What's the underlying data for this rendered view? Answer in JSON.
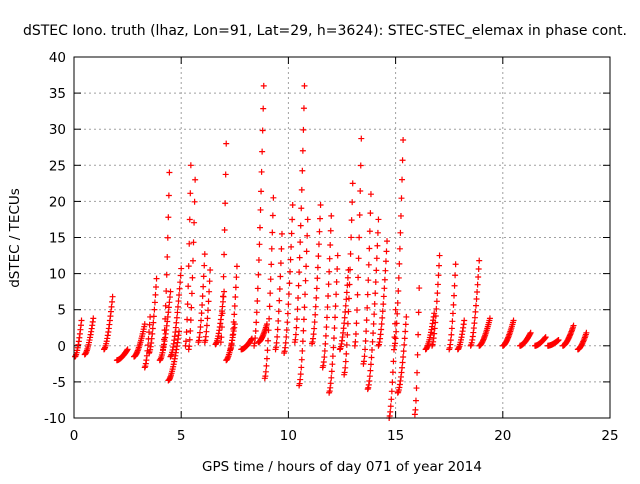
{
  "chart_data": {
    "type": "scatter",
    "title": "dSTEC Iono. truth (lhaz, Lon=91, Lat=29, h=3624): STEC-STEC_elemax in phase cont.",
    "xlabel": "GPS time / hours of day 071 of year 2014",
    "ylabel": "dSTEC  / TECUs",
    "xlim": [
      0,
      25
    ],
    "ylim": [
      -10,
      40
    ],
    "xticks": [
      0,
      5,
      10,
      15,
      20,
      25
    ],
    "yticks": [
      -10,
      -5,
      0,
      5,
      10,
      15,
      20,
      25,
      30,
      35,
      40
    ],
    "grid": true,
    "marker": "+",
    "marker_color": "#ff0000",
    "arcs": [
      {
        "t0": 0.05,
        "t1": 0.35,
        "v0": -1.5,
        "v1": 3.5
      },
      {
        "t0": 0.5,
        "t1": 0.9,
        "v0": -1.2,
        "v1": 3.8
      },
      {
        "t0": 1.4,
        "t1": 1.8,
        "v0": -0.5,
        "v1": 6.8
      },
      {
        "t0": 2.0,
        "t1": 2.5,
        "v0": -2.0,
        "v1": -0.5
      },
      {
        "t0": 2.8,
        "t1": 3.3,
        "v0": -1.5,
        "v1": 3.0
      },
      {
        "t0": 3.3,
        "t1": 3.55,
        "v0": -3.0,
        "v1": 4.0
      },
      {
        "t0": 3.5,
        "t1": 3.85,
        "v0": -1.0,
        "v1": 9.3
      },
      {
        "t0": 4.0,
        "t1": 4.5,
        "v0": -2.0,
        "v1": 7.5
      },
      {
        "t0": 4.15,
        "t1": 4.45,
        "v0": -0.5,
        "v1": 24.0
      },
      {
        "t0": 4.4,
        "t1": 4.9,
        "v0": -4.8,
        "v1": 2.0
      },
      {
        "t0": 4.5,
        "t1": 5.0,
        "v0": -1.5,
        "v1": 10.7
      },
      {
        "t0": 5.2,
        "t1": 5.45,
        "v0": 0.0,
        "v1": 25.0
      },
      {
        "t0": 5.35,
        "t1": 5.65,
        "v0": -0.5,
        "v1": 23.0
      },
      {
        "t0": 5.8,
        "t1": 6.1,
        "v0": 0.5,
        "v1": 12.7
      },
      {
        "t0": 6.1,
        "t1": 6.35,
        "v0": 0.5,
        "v1": 10.5
      },
      {
        "t0": 6.6,
        "t1": 7.0,
        "v0": 0.2,
        "v1": 7.5
      },
      {
        "t0": 6.85,
        "t1": 7.1,
        "v0": 0.5,
        "v1": 28.0
      },
      {
        "t0": 7.1,
        "t1": 7.5,
        "v0": -2.0,
        "v1": 3.0
      },
      {
        "t0": 7.3,
        "t1": 7.6,
        "v0": -0.5,
        "v1": 11.0
      },
      {
        "t0": 7.8,
        "t1": 8.3,
        "v0": -0.5,
        "v1": 1.0
      },
      {
        "t0": 8.4,
        "t1": 8.85,
        "v0": 0.0,
        "v1": 36.0
      },
      {
        "t0": 8.6,
        "t1": 9.0,
        "v0": 0.5,
        "v1": 3.0
      },
      {
        "t0": 8.9,
        "t1": 9.3,
        "v0": -4.5,
        "v1": 20.5
      },
      {
        "t0": 9.4,
        "t1": 9.7,
        "v0": -0.5,
        "v1": 15.5
      },
      {
        "t0": 9.8,
        "t1": 10.2,
        "v0": -1.0,
        "v1": 19.5
      },
      {
        "t0": 10.3,
        "t1": 10.75,
        "v0": 0.5,
        "v1": 36.0
      },
      {
        "t0": 10.5,
        "t1": 10.9,
        "v0": -5.5,
        "v1": 17.5
      },
      {
        "t0": 11.1,
        "t1": 11.5,
        "v0": 0.3,
        "v1": 19.5
      },
      {
        "t0": 11.6,
        "t1": 12.0,
        "v0": -3.0,
        "v1": 18.0
      },
      {
        "t0": 11.9,
        "t1": 12.3,
        "v0": -6.5,
        "v1": 12.5
      },
      {
        "t0": 12.4,
        "t1": 12.8,
        "v0": -0.5,
        "v1": 10.5
      },
      {
        "t0": 12.6,
        "t1": 13.0,
        "v0": -4.0,
        "v1": 22.5
      },
      {
        "t0": 13.1,
        "t1": 13.4,
        "v0": 0.0,
        "v1": 28.7
      },
      {
        "t0": 13.5,
        "t1": 13.85,
        "v0": -2.5,
        "v1": 21.0
      },
      {
        "t0": 13.7,
        "t1": 14.2,
        "v0": -6.0,
        "v1": 17.5
      },
      {
        "t0": 14.2,
        "t1": 14.6,
        "v0": 0.0,
        "v1": 14.5
      },
      {
        "t0": 14.7,
        "t1": 15.0,
        "v0": -10.0,
        "v1": 5.0
      },
      {
        "t0": 14.95,
        "t1": 15.35,
        "v0": 0.0,
        "v1": 28.5
      },
      {
        "t0": 15.1,
        "t1": 15.5,
        "v0": -6.5,
        "v1": 4.0
      },
      {
        "t0": 15.9,
        "t1": 16.1,
        "v0": -9.5,
        "v1": 8.0
      },
      {
        "t0": 16.4,
        "t1": 16.8,
        "v0": -0.5,
        "v1": 4.5
      },
      {
        "t0": 16.7,
        "t1": 17.05,
        "v0": 0.0,
        "v1": 12.5
      },
      {
        "t0": 17.5,
        "t1": 17.8,
        "v0": -0.5,
        "v1": 11.3
      },
      {
        "t0": 17.9,
        "t1": 18.2,
        "v0": -0.5,
        "v1": 3.5
      },
      {
        "t0": 18.5,
        "t1": 18.9,
        "v0": 0.0,
        "v1": 11.8
      },
      {
        "t0": 18.9,
        "t1": 19.4,
        "v0": 0.0,
        "v1": 3.8
      },
      {
        "t0": 20.0,
        "t1": 20.5,
        "v0": 0.0,
        "v1": 3.5
      },
      {
        "t0": 20.8,
        "t1": 21.3,
        "v0": 0.0,
        "v1": 1.8
      },
      {
        "t0": 21.5,
        "t1": 22.0,
        "v0": 0.0,
        "v1": 1.2
      },
      {
        "t0": 22.1,
        "t1": 22.6,
        "v0": 0.0,
        "v1": 0.8
      },
      {
        "t0": 22.8,
        "t1": 23.3,
        "v0": 0.0,
        "v1": 2.8
      },
      {
        "t0": 23.5,
        "t1": 23.9,
        "v0": -0.5,
        "v1": 1.8
      }
    ]
  }
}
